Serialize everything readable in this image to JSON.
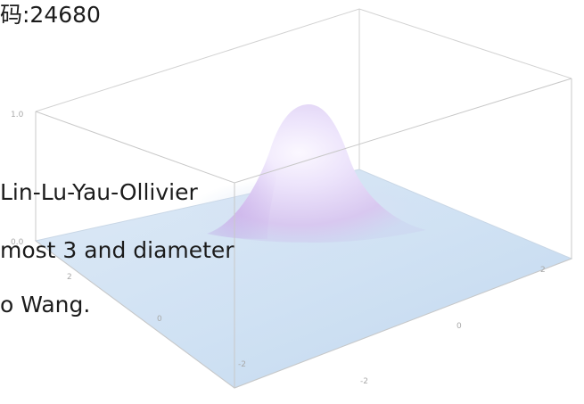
{
  "lines": [
    "码:24680",
    "Lin-Lu-Yau-Ollivier",
    "most 3 and diameter",
    "o Wang."
  ],
  "plot": {
    "z_ticks": [
      "1.0",
      "0.0"
    ],
    "x_ticks": [
      "2",
      "0",
      "-2"
    ],
    "y_ticks": [
      "0",
      "2",
      "-2"
    ],
    "colors": {
      "floor": "#cfe1f3",
      "peak": "#d9caf2",
      "box_edge": "#c8c8c8",
      "tick_text": "#a9a9a9"
    }
  }
}
